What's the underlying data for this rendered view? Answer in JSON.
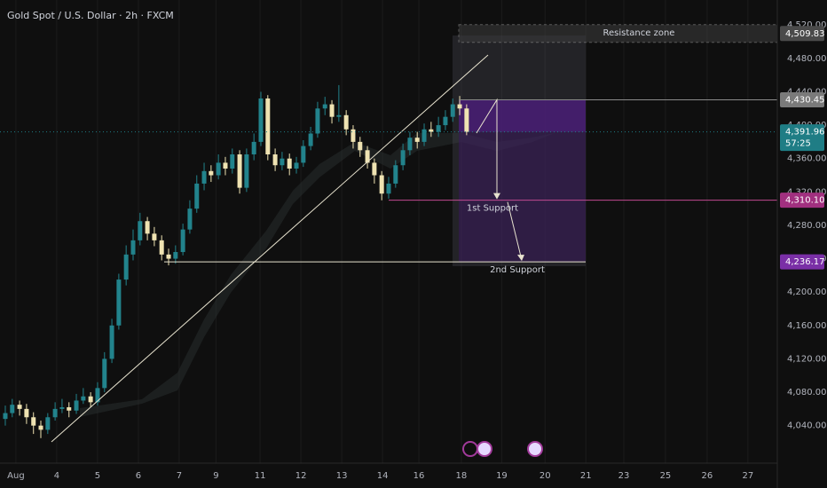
{
  "chart_data": {
    "type": "candlestick",
    "title": "Gold Spot / U.S. Dollar · 2h · FXCM",
    "up_color": "#22838c",
    "down_color": "#efe3b2",
    "x": [
      -0.26,
      -0.09,
      0.09,
      0.26,
      0.43,
      0.61,
      0.78,
      0.96,
      1.13,
      1.3,
      1.48,
      1.65,
      1.83,
      2.0,
      2.17,
      2.35,
      2.52,
      2.7,
      2.87,
      3.04,
      3.22,
      3.39,
      3.57,
      3.74,
      3.91,
      4.09,
      4.26,
      4.43,
      4.61,
      4.78,
      4.96,
      5.13,
      5.3,
      5.48,
      5.65,
      5.83,
      6.0,
      6.17,
      6.35,
      6.52,
      6.7,
      6.87,
      7.04,
      7.22,
      7.39,
      7.57,
      7.74,
      7.91,
      8.09,
      8.26,
      8.43,
      8.61,
      8.78,
      8.96,
      9.13,
      9.3,
      9.48,
      9.65,
      9.83,
      10.0,
      10.17,
      10.35,
      10.52,
      10.7,
      10.87,
      11.04
    ],
    "open": [
      4048,
      4055,
      4065,
      4060,
      4050,
      4040,
      4035,
      4050,
      4060,
      4062,
      4058,
      4070,
      4075,
      4068,
      4085,
      4120,
      4160,
      4215,
      4245,
      4262,
      4285,
      4270,
      4262,
      4245,
      4240,
      4248,
      4275,
      4300,
      4330,
      4345,
      4340,
      4355,
      4348,
      4365,
      4325,
      4365,
      4380,
      4432,
      4365,
      4352,
      4360,
      4348,
      4355,
      4375,
      4390,
      4420,
      4425,
      4410,
      4412,
      4395,
      4380,
      4370,
      4355,
      4340,
      4318,
      4330,
      4352,
      4370,
      4385,
      4380,
      4395,
      4392,
      4400,
      4410,
      4425,
      4420
    ],
    "high": [
      4064,
      4072,
      4070,
      4066,
      4056,
      4046,
      4055,
      4068,
      4072,
      4068,
      4078,
      4085,
      4080,
      4092,
      4128,
      4168,
      4222,
      4256,
      4275,
      4295,
      4290,
      4278,
      4268,
      4252,
      4256,
      4282,
      4310,
      4340,
      4355,
      4352,
      4365,
      4362,
      4372,
      4370,
      4372,
      4390,
      4440,
      4436,
      4372,
      4368,
      4366,
      4362,
      4382,
      4398,
      4428,
      4434,
      4430,
      4448,
      4418,
      4400,
      4386,
      4375,
      4360,
      4345,
      4338,
      4358,
      4378,
      4392,
      4392,
      4402,
      4404,
      4410,
      4418,
      4432,
      4435,
      4425
    ],
    "low": [
      4040,
      4050,
      4052,
      4042,
      4030,
      4025,
      4030,
      4046,
      4055,
      4050,
      4054,
      4066,
      4062,
      4064,
      4080,
      4115,
      4155,
      4208,
      4238,
      4256,
      4262,
      4255,
      4238,
      4232,
      4234,
      4244,
      4270,
      4295,
      4322,
      4332,
      4335,
      4340,
      4342,
      4318,
      4320,
      4358,
      4375,
      4358,
      4345,
      4346,
      4340,
      4342,
      4350,
      4370,
      4385,
      4412,
      4402,
      4404,
      4388,
      4372,
      4362,
      4348,
      4330,
      4310,
      4312,
      4325,
      4346,
      4364,
      4372,
      4375,
      4386,
      4386,
      4394,
      4404,
      4412,
      4388
    ],
    "close": [
      4055,
      4065,
      4060,
      4050,
      4040,
      4035,
      4050,
      4060,
      4062,
      4058,
      4070,
      4075,
      4068,
      4085,
      4120,
      4160,
      4215,
      4245,
      4262,
      4285,
      4270,
      4262,
      4245,
      4240,
      4248,
      4275,
      4300,
      4330,
      4345,
      4340,
      4355,
      4348,
      4365,
      4325,
      4365,
      4380,
      4432,
      4365,
      4352,
      4360,
      4348,
      4355,
      4375,
      4390,
      4420,
      4425,
      4410,
      4412,
      4395,
      4380,
      4370,
      4355,
      4340,
      4318,
      4330,
      4352,
      4370,
      4385,
      4380,
      4395,
      4392,
      4400,
      4410,
      4425,
      4420,
      4392
    ],
    "xlim": [
      -0.39,
      18.65
    ],
    "xticks": [
      {
        "value": 0,
        "label": "Aug"
      },
      {
        "value": 1,
        "label": "4"
      },
      {
        "value": 2,
        "label": "5"
      },
      {
        "value": 3,
        "label": "6"
      },
      {
        "value": 4,
        "label": "7"
      },
      {
        "value": 4.9,
        "label": "9"
      },
      {
        "value": 5.98,
        "label": "11"
      },
      {
        "value": 6.98,
        "label": "12"
      },
      {
        "value": 7.98,
        "label": "13"
      },
      {
        "value": 8.98,
        "label": "14"
      },
      {
        "value": 9.87,
        "label": "16"
      },
      {
        "value": 10.91,
        "label": "18"
      },
      {
        "value": 11.9,
        "label": "19"
      },
      {
        "value": 12.96,
        "label": "20"
      },
      {
        "value": 13.96,
        "label": "21"
      },
      {
        "value": 14.89,
        "label": "23"
      },
      {
        "value": 15.91,
        "label": "25"
      },
      {
        "value": 16.93,
        "label": "26"
      },
      {
        "value": 17.93,
        "label": "27"
      }
    ],
    "ylim": [
      3995,
      4550
    ],
    "yticks": [
      {
        "value": 4040,
        "label": "4,040.00"
      },
      {
        "value": 4080,
        "label": "4,080.00"
      },
      {
        "value": 4120,
        "label": "4,120.00"
      },
      {
        "value": 4160,
        "label": "4,160.00"
      },
      {
        "value": 4200,
        "label": "4,200.00"
      },
      {
        "value": 4240,
        "label": "4,240.00"
      },
      {
        "value": 4280,
        "label": "4,280.00"
      },
      {
        "value": 4320,
        "label": "4,320.00"
      },
      {
        "value": 4360,
        "label": "4,360.00"
      },
      {
        "value": 4400,
        "label": "4,400.00"
      },
      {
        "value": 4440,
        "label": "4,440.00"
      },
      {
        "value": 4480,
        "label": "4,480.00"
      },
      {
        "value": 4520,
        "label": "4,520.00"
      }
    ],
    "grid": true,
    "price_labels": [
      {
        "value": 4509.83,
        "label": "4,509.83",
        "color": "#4a4a4a"
      },
      {
        "value": 4430.45,
        "label": "4,430.45",
        "color": "#7a7a7a"
      },
      {
        "value": 4391.96,
        "label": "4,391.96",
        "color": "#1f7d85",
        "countdown": "57:25"
      },
      {
        "value": 4310.1,
        "label": "4,310.10",
        "color": "#a1307f"
      },
      {
        "value": 4236.17,
        "label": "4,236.17",
        "color": "#7a2fa6"
      }
    ],
    "annotations": {
      "resistance": "Resistance zone",
      "support1": "1st Support",
      "support2": "2nd Support"
    }
  }
}
